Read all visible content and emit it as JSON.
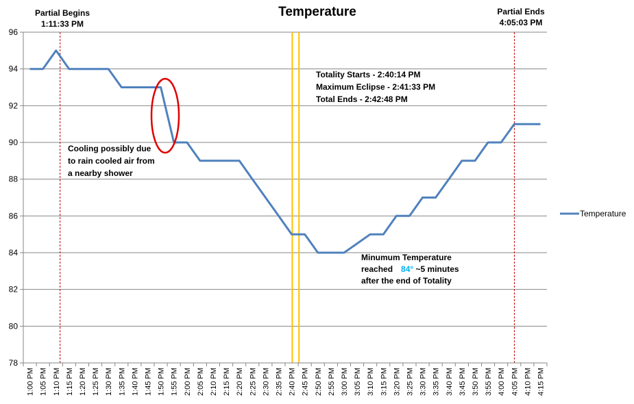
{
  "chart_data": {
    "type": "line",
    "title": "Temperature",
    "xlabel": "",
    "ylabel": "",
    "ylim": [
      78,
      96
    ],
    "yticks": [
      "78",
      "80",
      "82",
      "84",
      "86",
      "88",
      "90",
      "92",
      "94",
      "96"
    ],
    "grid": true,
    "legend_position": "right",
    "categories": [
      "1:00 PM",
      "1:05 PM",
      "1:10 PM",
      "1:15 PM",
      "1:20 PM",
      "1:25 PM",
      "1:30 PM",
      "1:35 PM",
      "1:40 PM",
      "1:45 PM",
      "1:50 PM",
      "1:55 PM",
      "2:00 PM",
      "2:05 PM",
      "2:10 PM",
      "2:15 PM",
      "2:20 PM",
      "2:25 PM",
      "2:30 PM",
      "2:35 PM",
      "2:40 PM",
      "2:45 PM",
      "2:50 PM",
      "2:55 PM",
      "3:00 PM",
      "3:05 PM",
      "3:10 PM",
      "3:15 PM",
      "3:20 PM",
      "3:25 PM",
      "3:30 PM",
      "3:35 PM",
      "3:40 PM",
      "3:45 PM",
      "3:50 PM",
      "3:55 PM",
      "4:00 PM",
      "4:05 PM",
      "4:10 PM",
      "4:15 PM"
    ],
    "series": [
      {
        "name": "Temperature",
        "color": "#4f81bd",
        "points": [
          [
            "1:00 PM",
            94
          ],
          [
            "1:05 PM",
            94
          ],
          [
            "1:10 PM",
            95
          ],
          [
            "1:15 PM",
            94
          ],
          [
            "1:20 PM",
            94
          ],
          [
            "1:25 PM",
            94
          ],
          [
            "1:30 PM",
            94
          ],
          [
            "1:35 PM",
            93
          ],
          [
            "1:40 PM",
            93
          ],
          [
            "1:45 PM",
            93
          ],
          [
            "1:50 PM",
            93
          ],
          [
            "1:55 PM",
            90
          ],
          [
            "1:58 PM",
            90
          ],
          [
            "2:00 PM",
            90
          ],
          [
            "2:05 PM",
            89
          ],
          [
            "2:10 PM",
            89
          ],
          [
            "2:15 PM",
            89
          ],
          [
            "2:20 PM",
            89
          ],
          [
            "2:25 PM",
            88
          ],
          [
            "2:30 PM",
            87
          ],
          [
            "2:35 PM",
            86
          ],
          [
            "2:40 PM",
            85
          ],
          [
            "2:45 PM",
            85
          ],
          [
            "2:50 PM",
            84
          ],
          [
            "2:55 PM",
            84
          ],
          [
            "3:00 PM",
            84
          ],
          [
            "3:05 PM",
            84.5
          ],
          [
            "3:10 PM",
            85
          ],
          [
            "3:15 PM",
            85
          ],
          [
            "3:20 PM",
            86
          ],
          [
            "3:25 PM",
            86
          ],
          [
            "3:30 PM",
            87
          ],
          [
            "3:35 PM",
            87
          ],
          [
            "3:40 PM",
            88
          ],
          [
            "3:45 PM",
            89
          ],
          [
            "3:50 PM",
            89
          ],
          [
            "3:55 PM",
            90
          ],
          [
            "4:00 PM",
            90
          ],
          [
            "4:05 PM",
            91
          ],
          [
            "4:10 PM",
            91
          ],
          [
            "4:15 PM",
            91
          ]
        ]
      }
    ],
    "reference_lines": [
      {
        "name": "partial-begins",
        "time": "1:11:33 PM",
        "minutes": 11.55,
        "color": "#c00000",
        "style": "dashed"
      },
      {
        "name": "totality-starts",
        "time": "2:40:14 PM",
        "minutes": 100.23,
        "color": "#ffc000",
        "style": "solid"
      },
      {
        "name": "totality-ends",
        "time": "2:42:48 PM",
        "minutes": 102.8,
        "color": "#ffc000",
        "style": "solid"
      },
      {
        "name": "partial-ends",
        "time": "4:05:03 PM",
        "minutes": 185.05,
        "color": "#c00000",
        "style": "dashed"
      }
    ],
    "annotations": {
      "partial_begins_label": "Partial Begins",
      "partial_begins_time": "1:11:33 PM",
      "partial_ends_label": "Partial Ends",
      "partial_ends_time": "4:05:03 PM",
      "totality_line1": "Totality Starts - 2:40:14 PM",
      "totality_line2": "Maximum Eclipse - 2:41:33  PM",
      "totality_line3": "Total Ends - 2:42:48  PM",
      "cooling_line1": "Cooling possibly due",
      "cooling_line2": "to rain cooled air from",
      "cooling_line3": "a nearby shower",
      "min_line1": "Minumum Temperature",
      "min_line2_pre": "reached",
      "min_line2_value": "84°",
      "min_line2_post": " ~5 minutes",
      "min_line3": "after the end of Totality",
      "min_value_color": "#00b0f0",
      "highlight_circle_color": "#e00000"
    }
  }
}
